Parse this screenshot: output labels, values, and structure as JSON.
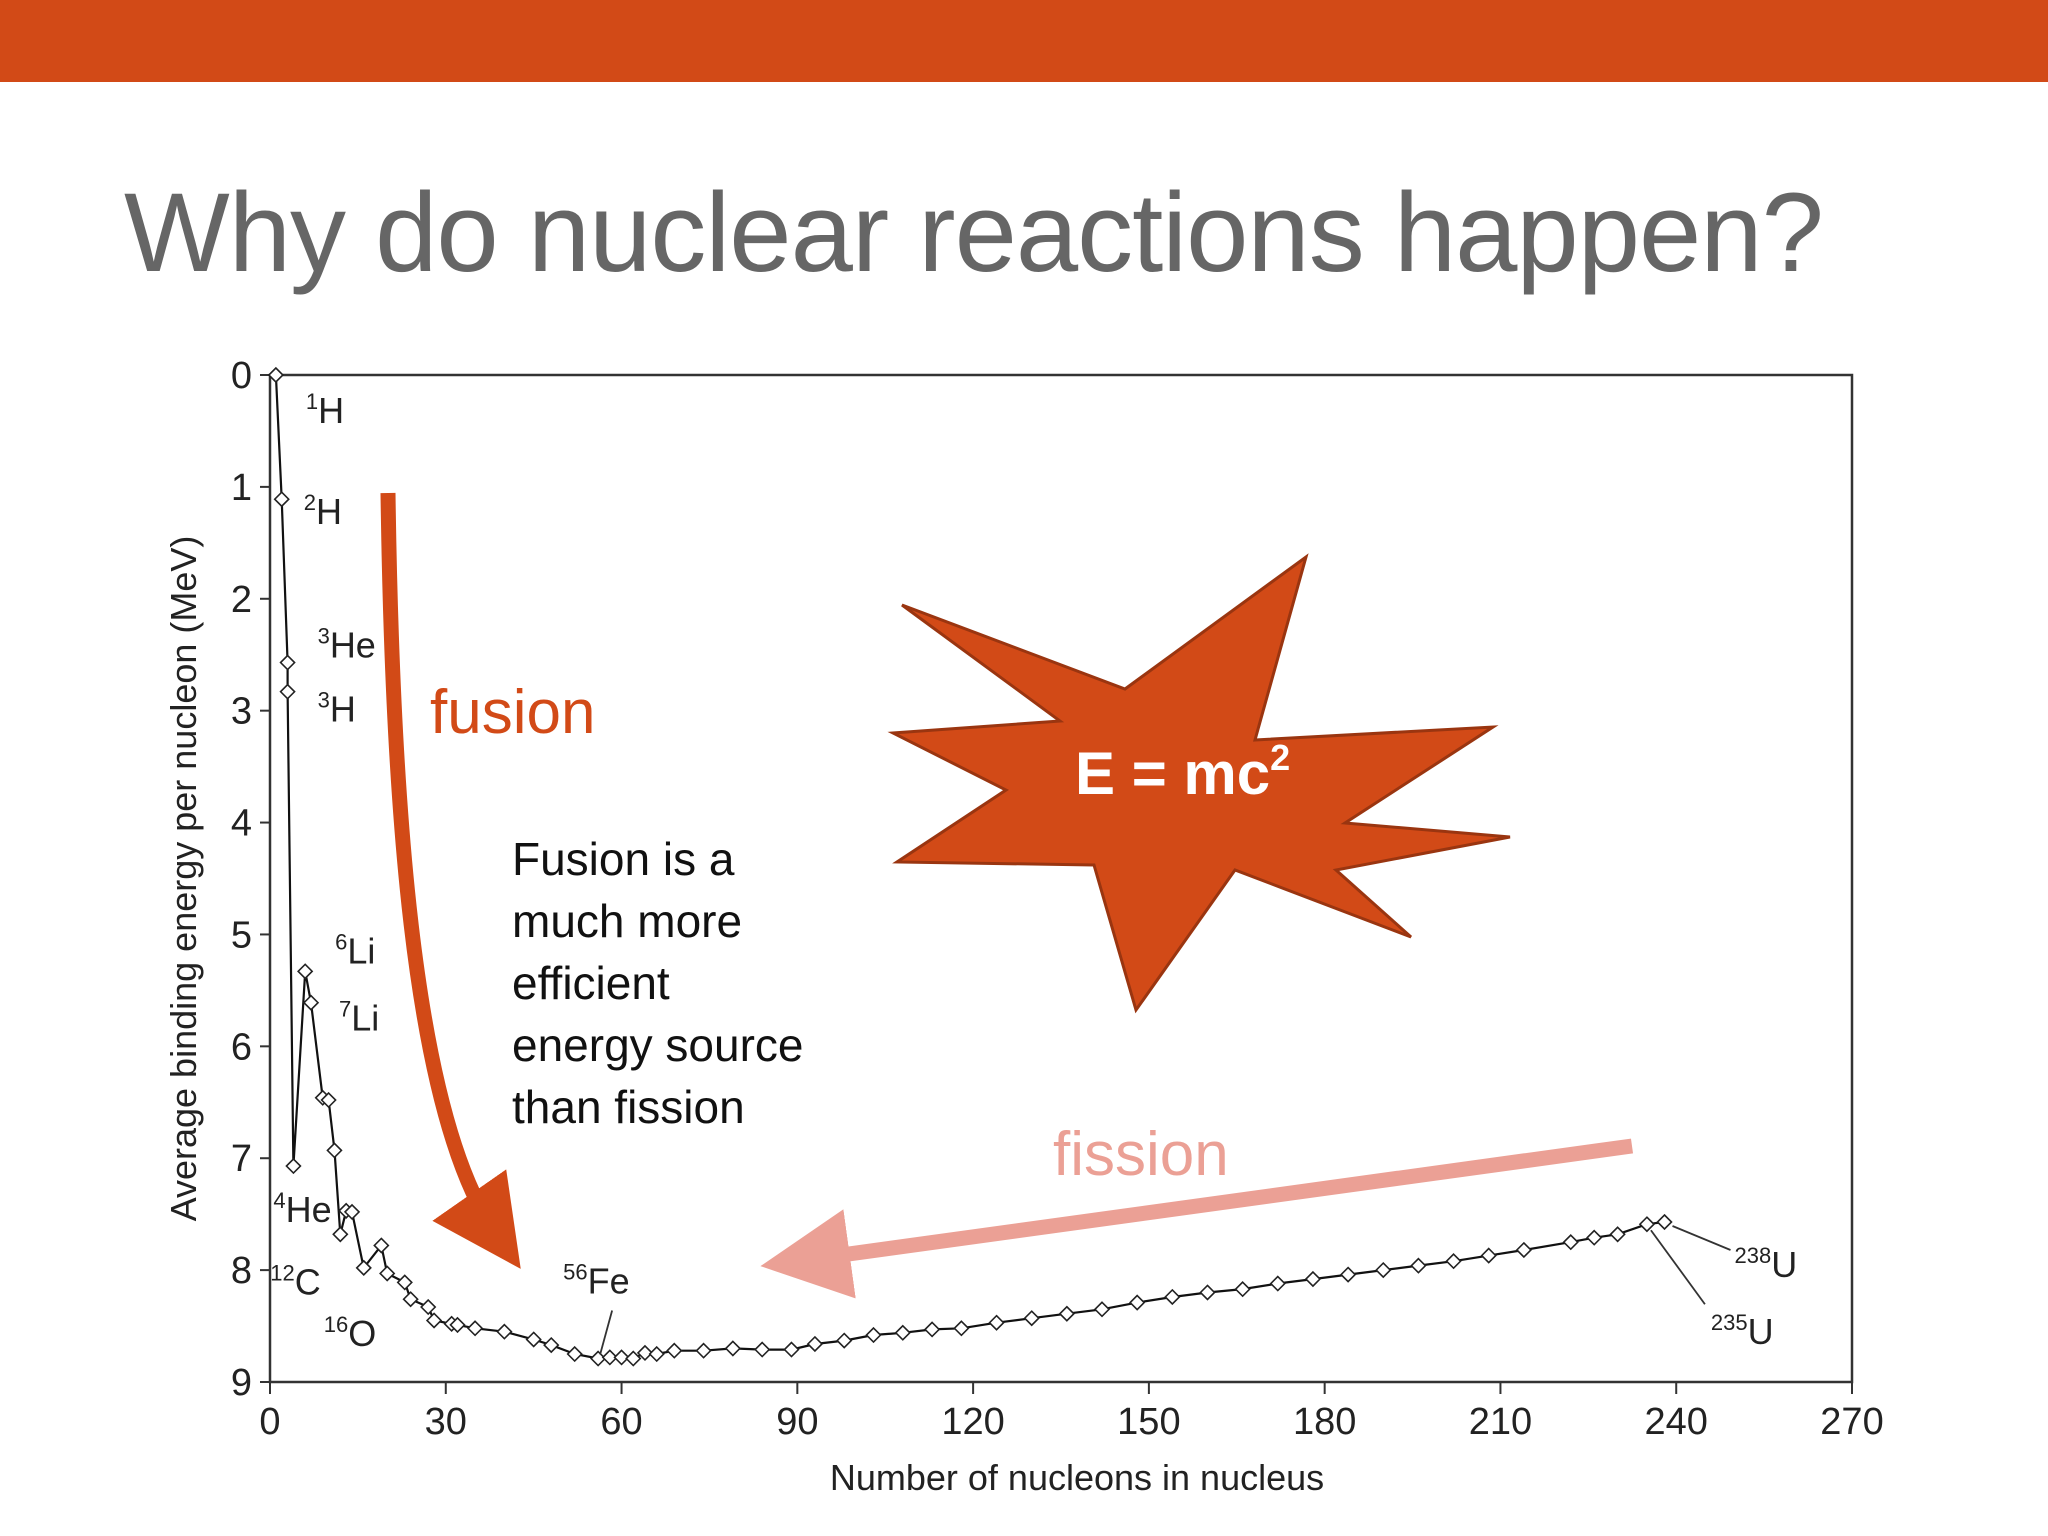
{
  "slide": {
    "title": "Why do nuclear reactions happen?",
    "accent_color": "#D24A17",
    "fission_color": "#EBA095"
  },
  "annotations": {
    "fusion_label": "fusion",
    "fission_label": "fission",
    "note_lines": [
      "Fusion is a",
      "much more",
      "efficient",
      "energy source",
      "than fission"
    ],
    "equation_base": "E = mc",
    "equation_exp": "2"
  },
  "chart_data": {
    "type": "line",
    "xlabel": "Number of nucleons in nucleus",
    "ylabel": "Average binding energy per nucleon (MeV)",
    "xlim": [
      0,
      270
    ],
    "ylim": [
      9,
      0
    ],
    "y_inverted": true,
    "xticks": [
      "0",
      "30",
      "60",
      "90",
      "120",
      "150",
      "180",
      "210",
      "240",
      "270"
    ],
    "yticks": [
      "0",
      "1",
      "2",
      "3",
      "4",
      "5",
      "6",
      "7",
      "8",
      "9"
    ],
    "grid": false,
    "x": [
      1,
      2,
      3,
      3,
      4,
      6,
      7,
      9,
      10,
      11,
      12,
      13,
      14,
      16,
      19,
      20,
      23,
      24,
      27,
      28,
      31,
      32,
      35,
      40,
      45,
      48,
      52,
      56,
      58,
      60,
      62,
      64,
      66,
      69,
      74,
      79,
      84,
      89,
      93,
      98,
      103,
      108,
      113,
      118,
      124,
      130,
      136,
      142,
      148,
      154,
      160,
      166,
      172,
      178,
      184,
      190,
      196,
      202,
      208,
      214,
      222,
      226,
      230,
      235,
      238
    ],
    "y": [
      0.0,
      1.11,
      2.57,
      2.83,
      7.07,
      5.33,
      5.61,
      6.46,
      6.48,
      6.93,
      7.68,
      7.47,
      7.48,
      7.98,
      7.78,
      8.03,
      8.11,
      8.26,
      8.33,
      8.45,
      8.48,
      8.49,
      8.52,
      8.55,
      8.62,
      8.67,
      8.75,
      8.79,
      8.78,
      8.78,
      8.79,
      8.74,
      8.75,
      8.72,
      8.72,
      8.7,
      8.71,
      8.71,
      8.66,
      8.63,
      8.58,
      8.56,
      8.53,
      8.52,
      8.47,
      8.43,
      8.39,
      8.35,
      8.29,
      8.24,
      8.2,
      8.17,
      8.12,
      8.08,
      8.04,
      8.0,
      7.96,
      7.92,
      7.87,
      7.82,
      7.75,
      7.71,
      7.68,
      7.59,
      7.57
    ],
    "labeled_nuclides": [
      {
        "mass": "1",
        "symbol": "H",
        "x": 1,
        "y": 0.0
      },
      {
        "mass": "2",
        "symbol": "H",
        "x": 2,
        "y": 1.11
      },
      {
        "mass": "3",
        "symbol": "He",
        "x": 3,
        "y": 2.57
      },
      {
        "mass": "3",
        "symbol": "H",
        "x": 3,
        "y": 2.83
      },
      {
        "mass": "6",
        "symbol": "Li",
        "x": 6,
        "y": 5.33
      },
      {
        "mass": "7",
        "symbol": "Li",
        "x": 7,
        "y": 5.61
      },
      {
        "mass": "4",
        "symbol": "He",
        "x": 4,
        "y": 7.07
      },
      {
        "mass": "12",
        "symbol": "C",
        "x": 12,
        "y": 7.68
      },
      {
        "mass": "16",
        "symbol": "O",
        "x": 16,
        "y": 7.98
      },
      {
        "mass": "56",
        "symbol": "Fe",
        "x": 56,
        "y": 8.79
      },
      {
        "mass": "238",
        "symbol": "U",
        "x": 238,
        "y": 7.57
      },
      {
        "mass": "235",
        "symbol": "U",
        "x": 235,
        "y": 7.59
      }
    ]
  }
}
